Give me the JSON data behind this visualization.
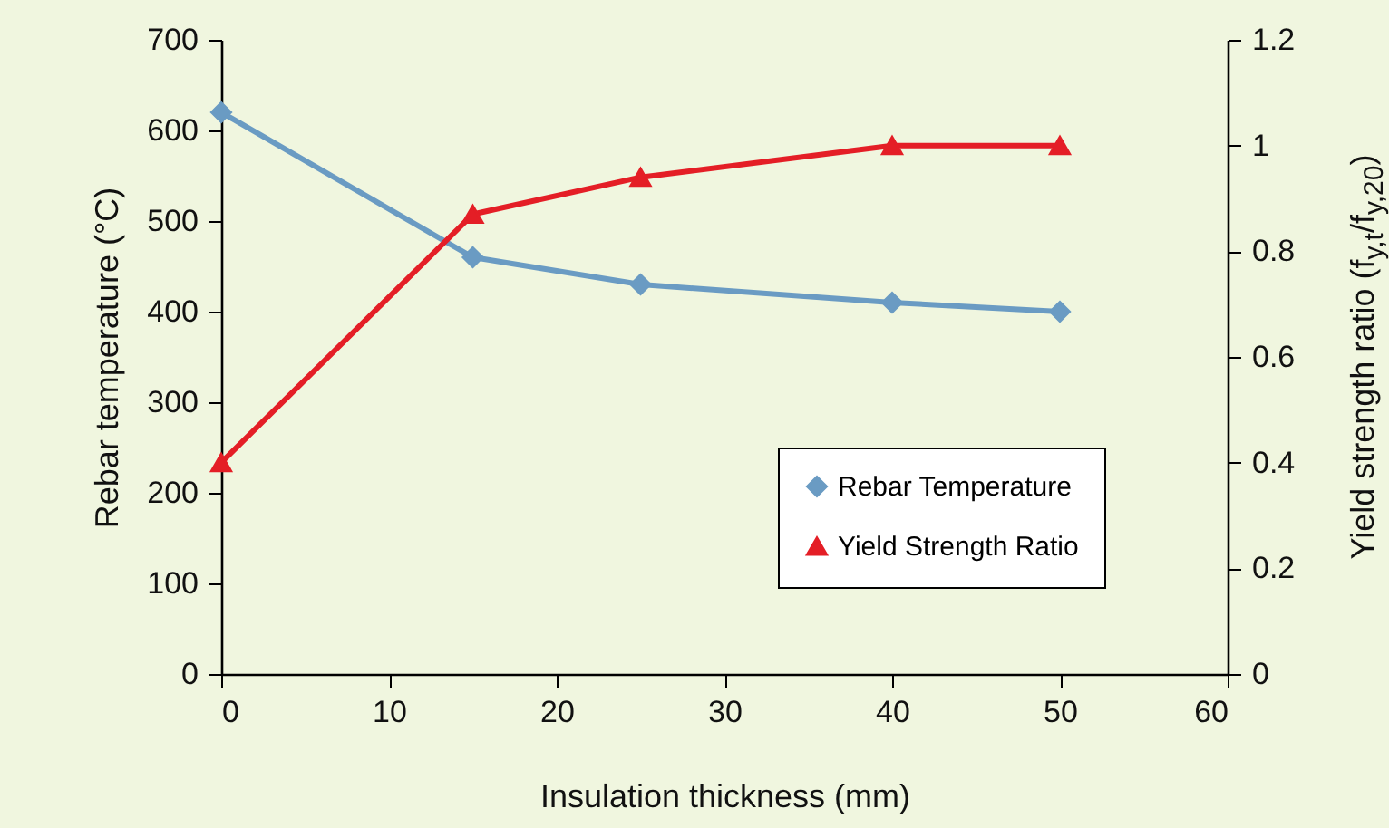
{
  "chart_data": {
    "type": "line",
    "xlabel": "Insulation thickness (mm)",
    "ylabel": "Rebar temperature (°C)",
    "y2label": "Yield strength ratio (f$_{y,t}$/f$_{y,20}$)",
    "x": [
      0,
      15,
      25,
      40,
      50
    ],
    "series": [
      {
        "name": "Rebar Temperature",
        "color": "#6a9bc3",
        "marker": "diamond",
        "values": [
          620,
          460,
          430,
          410,
          400
        ]
      },
      {
        "name": "Yield Strength Ratio",
        "color": "#e41e26",
        "marker": "triangle",
        "axis": "y2",
        "values": [
          0.4,
          0.87,
          0.94,
          1.0,
          1.0
        ]
      }
    ],
    "xlim": [
      0,
      60
    ],
    "xticks": [
      0,
      10,
      20,
      30,
      40,
      50,
      60
    ],
    "ylim": [
      0,
      700
    ],
    "yticks": [
      0,
      100,
      200,
      300,
      400,
      500,
      600,
      700
    ],
    "y2lim": [
      0,
      1.2
    ],
    "y2ticks": [
      0,
      0.2,
      0.4,
      0.6,
      0.8,
      1,
      1.2
    ],
    "legend": "bottom right",
    "grid": false
  }
}
